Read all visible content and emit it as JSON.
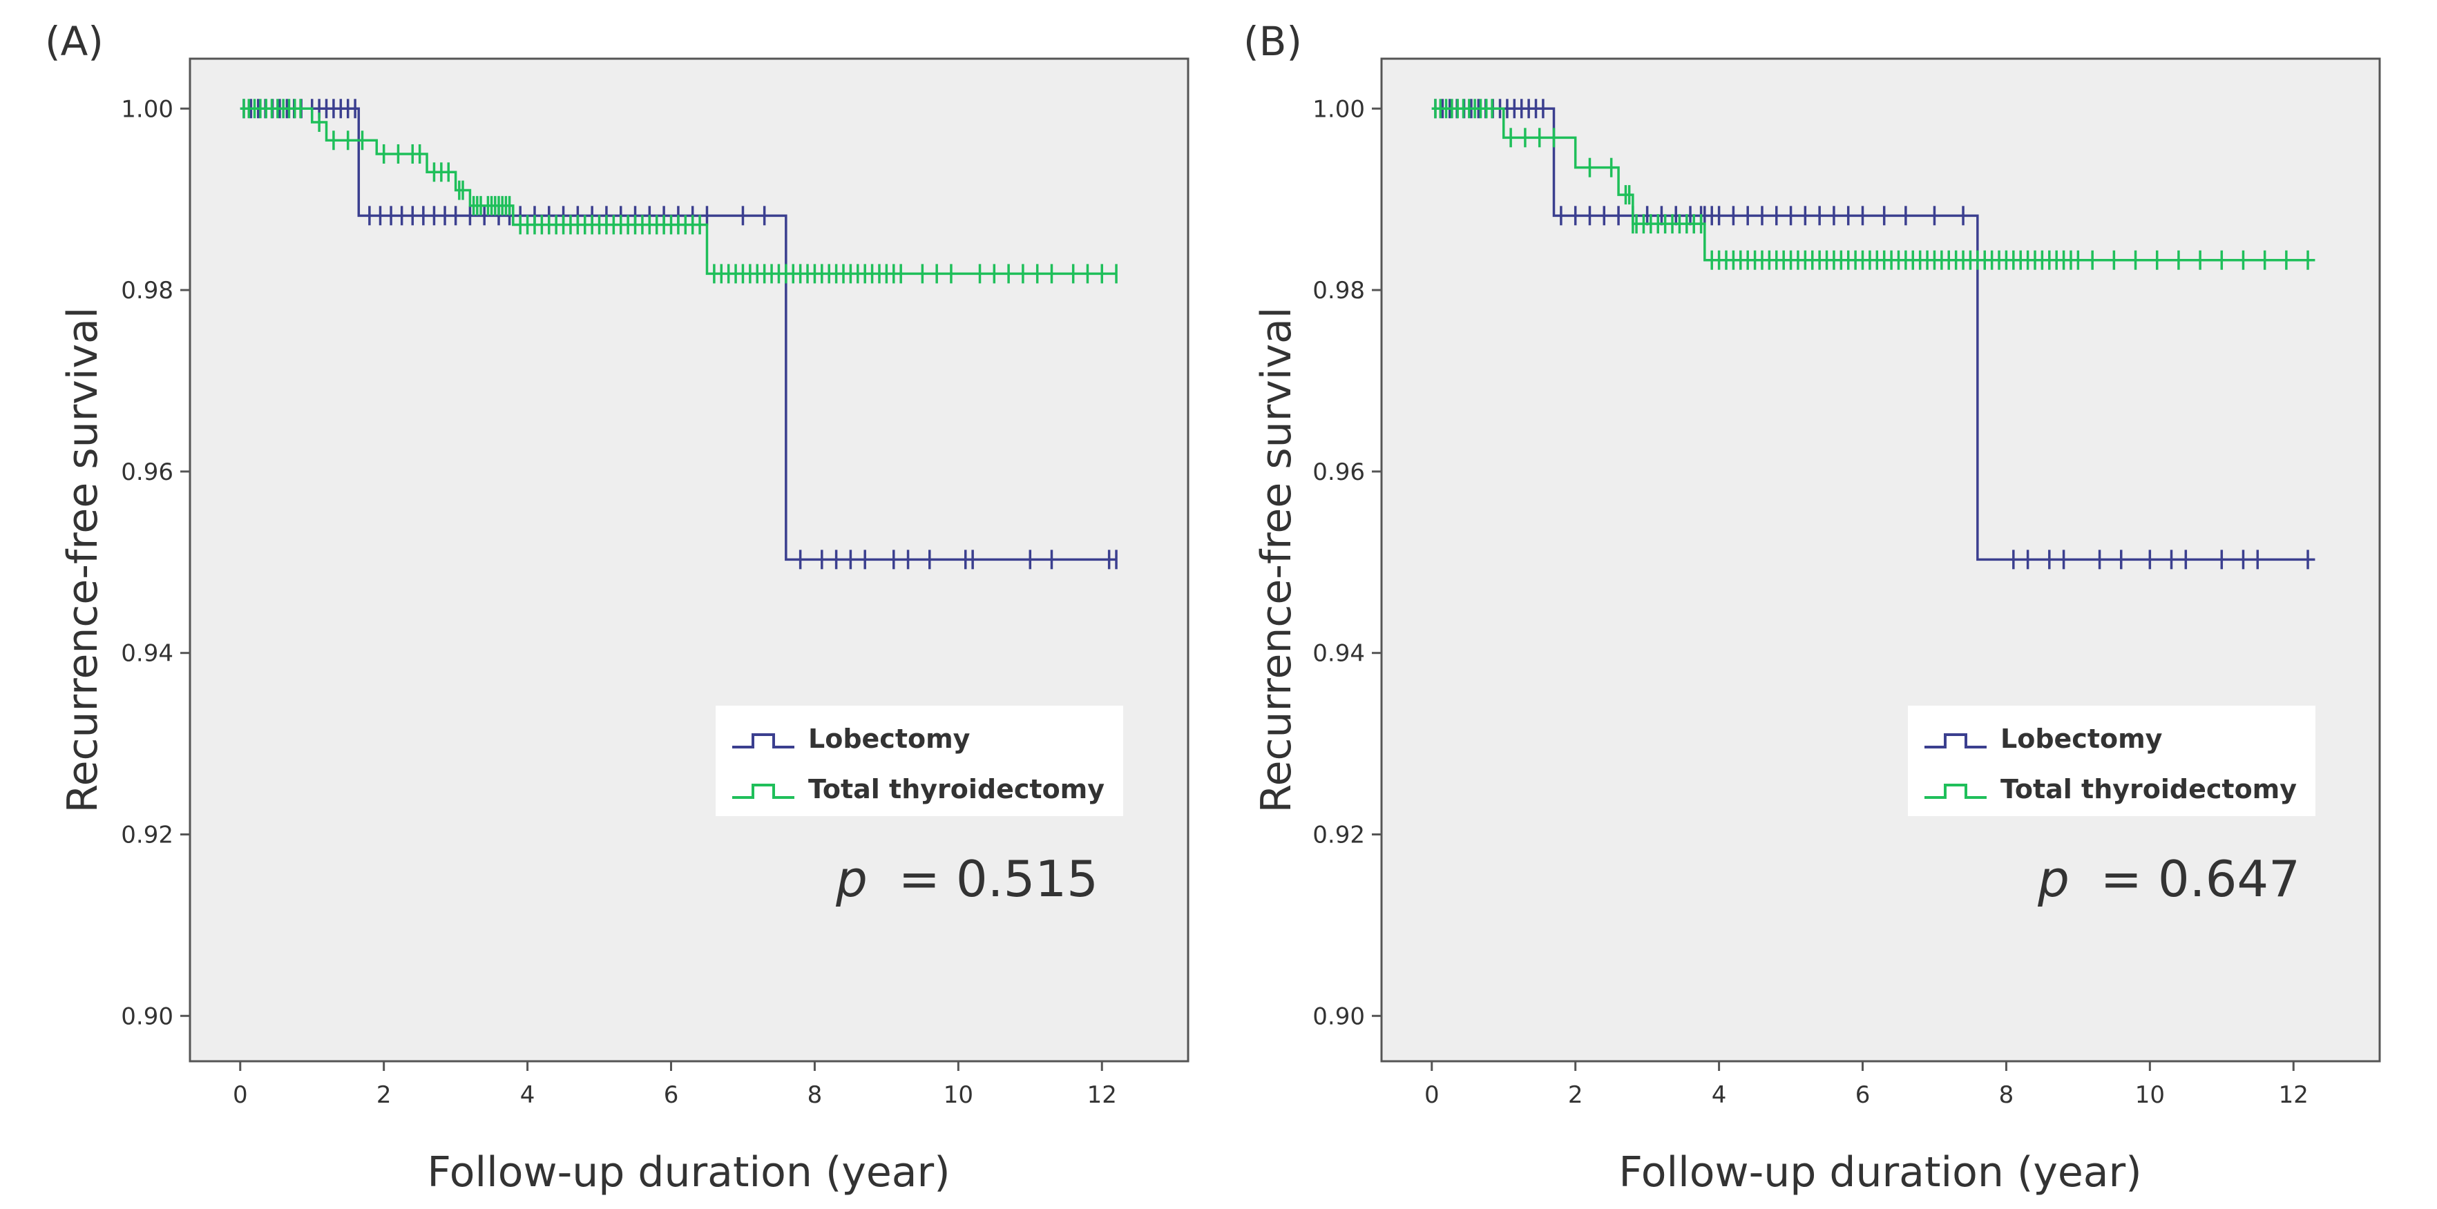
{
  "chart_data": [
    {
      "type": "line",
      "panel_label": "(A)",
      "xlabel": "Follow-up duration (year)",
      "ylabel": "Recurrence-free survival",
      "xlim": [
        -0.7,
        13.2
      ],
      "ylim": [
        0.895,
        1.0055
      ],
      "xticks": [
        0,
        2,
        4,
        6,
        8,
        10,
        12
      ],
      "xtick_labels": [
        "0",
        "2",
        "4",
        "6",
        "8",
        "10",
        "12"
      ],
      "yticks": [
        0.9,
        0.92,
        0.94,
        0.96,
        0.98,
        1.0
      ],
      "ytick_labels": [
        "0.90",
        "0.92",
        "0.94",
        "0.96",
        "0.98",
        "1.00"
      ],
      "legend": [
        "Lobectomy",
        "Total thyroidectomy"
      ],
      "annotation": {
        "italic": "p",
        "text": "= 0.515"
      },
      "series": [
        {
          "name": "Lobectomy",
          "color": "#3b3f8f",
          "steps": [
            [
              0,
              1.0
            ],
            [
              1.65,
              0.9882
            ],
            [
              7.6,
              0.9503
            ],
            [
              12.2,
              0.9503
            ]
          ],
          "censor": [
            0.05,
            0.15,
            0.25,
            0.35,
            0.45,
            0.55,
            0.65,
            0.75,
            0.85,
            1.0,
            1.1,
            1.2,
            1.3,
            1.4,
            1.5,
            1.6,
            1.8,
            1.95,
            2.1,
            2.25,
            2.4,
            2.55,
            2.7,
            2.85,
            3.0,
            3.2,
            3.4,
            3.6,
            3.75,
            3.9,
            4.1,
            4.3,
            4.5,
            4.7,
            4.9,
            5.1,
            5.3,
            5.5,
            5.7,
            5.9,
            6.1,
            6.3,
            6.5,
            7.0,
            7.3,
            7.8,
            8.1,
            8.3,
            8.5,
            8.7,
            9.1,
            9.3,
            9.6,
            10.1,
            10.2,
            11.0,
            11.3,
            12.1,
            12.2
          ]
        },
        {
          "name": "Total thyroidectomy",
          "color": "#1fbf5a",
          "steps": [
            [
              0,
              1.0
            ],
            [
              1.0,
              0.9985
            ],
            [
              1.2,
              0.9965
            ],
            [
              1.9,
              0.995
            ],
            [
              2.6,
              0.993
            ],
            [
              3.0,
              0.991
            ],
            [
              3.2,
              0.9893
            ],
            [
              3.8,
              0.9872
            ],
            [
              6.5,
              0.9818
            ],
            [
              12.2,
              0.9818
            ]
          ],
          "censor": [
            0.05,
            0.12,
            0.2,
            0.28,
            0.36,
            0.44,
            0.52,
            0.6,
            0.68,
            0.76,
            0.84,
            1.1,
            1.3,
            1.5,
            1.7,
            2.0,
            2.2,
            2.4,
            2.5,
            2.7,
            2.8,
            2.9,
            3.05,
            3.1,
            3.25,
            3.3,
            3.35,
            3.45,
            3.5,
            3.55,
            3.6,
            3.65,
            3.7,
            3.75,
            3.9,
            4.0,
            4.1,
            4.2,
            4.3,
            4.4,
            4.5,
            4.6,
            4.7,
            4.8,
            4.9,
            5.0,
            5.1,
            5.2,
            5.3,
            5.4,
            5.5,
            5.6,
            5.7,
            5.8,
            5.9,
            6.0,
            6.1,
            6.2,
            6.3,
            6.4,
            6.6,
            6.7,
            6.8,
            6.9,
            7.0,
            7.1,
            7.2,
            7.3,
            7.4,
            7.5,
            7.6,
            7.7,
            7.8,
            7.9,
            8.0,
            8.1,
            8.2,
            8.3,
            8.4,
            8.5,
            8.6,
            8.7,
            8.8,
            8.9,
            9.0,
            9.1,
            9.2,
            9.5,
            9.7,
            9.9,
            10.3,
            10.5,
            10.7,
            10.9,
            11.1,
            11.3,
            11.6,
            11.8,
            12.0,
            12.2
          ]
        }
      ]
    },
    {
      "type": "line",
      "panel_label": "(B)",
      "xlabel": "Follow-up duration (year)",
      "ylabel": "Recurrence-free survival",
      "xlim": [
        -0.7,
        13.2
      ],
      "ylim": [
        0.895,
        1.0055
      ],
      "xticks": [
        0,
        2,
        4,
        6,
        8,
        10,
        12
      ],
      "xtick_labels": [
        "0",
        "2",
        "4",
        "6",
        "8",
        "10",
        "12"
      ],
      "yticks": [
        0.9,
        0.92,
        0.94,
        0.96,
        0.98,
        1.0
      ],
      "ytick_labels": [
        "0.90",
        "0.92",
        "0.94",
        "0.96",
        "0.98",
        "1.00"
      ],
      "legend": [
        "Lobectomy",
        "Total thyroidectomy"
      ],
      "annotation": {
        "italic": "p",
        "text": "= 0.647"
      },
      "series": [
        {
          "name": "Lobectomy",
          "color": "#3b3f8f",
          "steps": [
            [
              0,
              1.0
            ],
            [
              1.7,
              0.9882
            ],
            [
              7.6,
              0.9503
            ],
            [
              12.3,
              0.9503
            ]
          ],
          "censor": [
            0.05,
            0.15,
            0.25,
            0.35,
            0.45,
            0.55,
            0.65,
            0.75,
            0.85,
            0.95,
            1.05,
            1.15,
            1.25,
            1.35,
            1.45,
            1.55,
            1.8,
            2.0,
            2.2,
            2.4,
            2.6,
            2.8,
            3.0,
            3.2,
            3.4,
            3.6,
            3.75,
            3.8,
            3.9,
            4.0,
            4.2,
            4.4,
            4.6,
            4.8,
            5.0,
            5.2,
            5.4,
            5.6,
            5.8,
            6.0,
            6.3,
            6.6,
            7.0,
            7.4,
            8.1,
            8.3,
            8.6,
            8.8,
            9.3,
            9.6,
            10.0,
            10.3,
            10.5,
            11.0,
            11.3,
            11.5,
            12.2
          ]
        },
        {
          "name": "Total thyroidectomy",
          "color": "#1fbf5a",
          "steps": [
            [
              0,
              1.0
            ],
            [
              1.0,
              0.9968
            ],
            [
              2.0,
              0.9935
            ],
            [
              2.6,
              0.9905
            ],
            [
              2.8,
              0.9873
            ],
            [
              3.8,
              0.9833
            ],
            [
              12.3,
              0.9833
            ]
          ],
          "censor": [
            0.05,
            0.12,
            0.2,
            0.28,
            0.36,
            0.44,
            0.52,
            0.6,
            0.68,
            0.76,
            0.84,
            1.1,
            1.3,
            1.5,
            1.7,
            2.2,
            2.5,
            2.7,
            2.75,
            2.8,
            2.85,
            2.95,
            3.05,
            3.15,
            3.25,
            3.35,
            3.45,
            3.55,
            3.65,
            3.75,
            3.9,
            4.0,
            4.1,
            4.2,
            4.3,
            4.4,
            4.5,
            4.6,
            4.7,
            4.8,
            4.9,
            5.0,
            5.1,
            5.2,
            5.3,
            5.4,
            5.5,
            5.6,
            5.7,
            5.8,
            5.9,
            6.0,
            6.1,
            6.2,
            6.3,
            6.4,
            6.5,
            6.6,
            6.7,
            6.8,
            6.9,
            7.0,
            7.1,
            7.2,
            7.3,
            7.4,
            7.5,
            7.6,
            7.7,
            7.8,
            7.9,
            8.0,
            8.1,
            8.2,
            8.3,
            8.4,
            8.5,
            8.6,
            8.7,
            8.8,
            8.9,
            9.0,
            9.2,
            9.5,
            9.8,
            10.1,
            10.4,
            10.7,
            11.0,
            11.3,
            11.6,
            11.9,
            12.2
          ]
        }
      ]
    }
  ]
}
